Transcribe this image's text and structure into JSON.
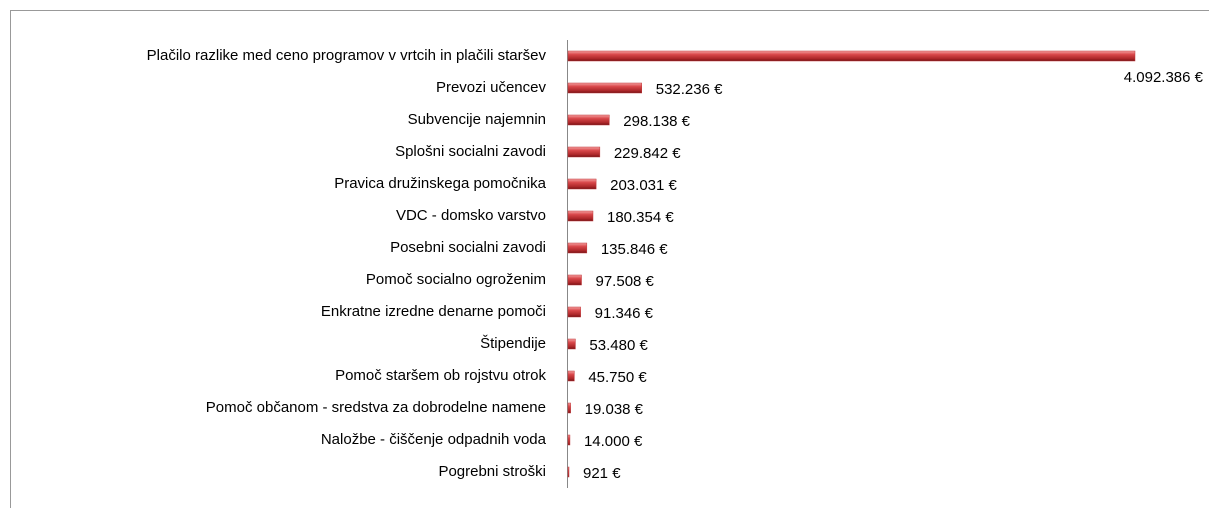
{
  "chart_data": {
    "type": "barh",
    "categories": [
      "Plačilo razlike med ceno programov v vrtcih in plačili staršev",
      "Prevozi učencev",
      "Subvencije najemnin",
      "Splošni socialni zavodi",
      "Pravica družinskega pomočnika",
      "VDC - domsko varstvo",
      "Posebni socialni zavodi",
      "Pomoč socialno ogroženim",
      "Enkratne izredne denarne pomoči",
      "Štipendije",
      "Pomoč staršem ob rojstvu otrok",
      "Pomoč občanom - sredstva za dobrodelne namene",
      "Naložbe - čiščenje odpadnih voda",
      "Pogrebni stroški"
    ],
    "values": [
      4092386,
      532236,
      298138,
      229842,
      203031,
      180354,
      135846,
      97508,
      91346,
      53480,
      45750,
      19038,
      14000,
      921
    ],
    "value_labels": [
      "4.092.386 €",
      "532.236 €",
      "298.138 €",
      "229.842 €",
      "203.031 €",
      "180.354 €",
      "135.846 €",
      "97.508 €",
      "91.346 €",
      "53.480 €",
      "45.750 €",
      "19.038 €",
      "14.000 €",
      "921 €"
    ],
    "color": "#c0393b"
  }
}
